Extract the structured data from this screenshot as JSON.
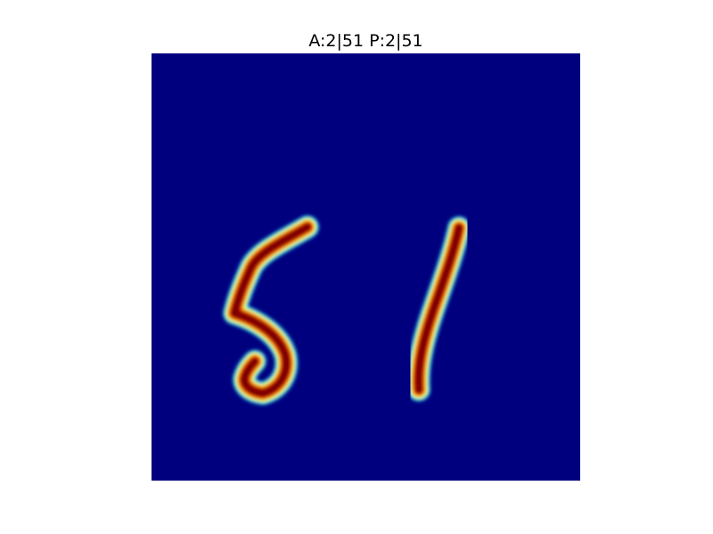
{
  "title": "A:2|51 P:2|51",
  "colors": {
    "background": "#00007f",
    "halo": "#00ffff",
    "mid": "#ffff00",
    "edge": "#ff3300",
    "core": "#7f0000"
  },
  "digits": [
    {
      "name": "digit-five",
      "value": "5"
    },
    {
      "name": "digit-one",
      "value": "1"
    }
  ]
}
